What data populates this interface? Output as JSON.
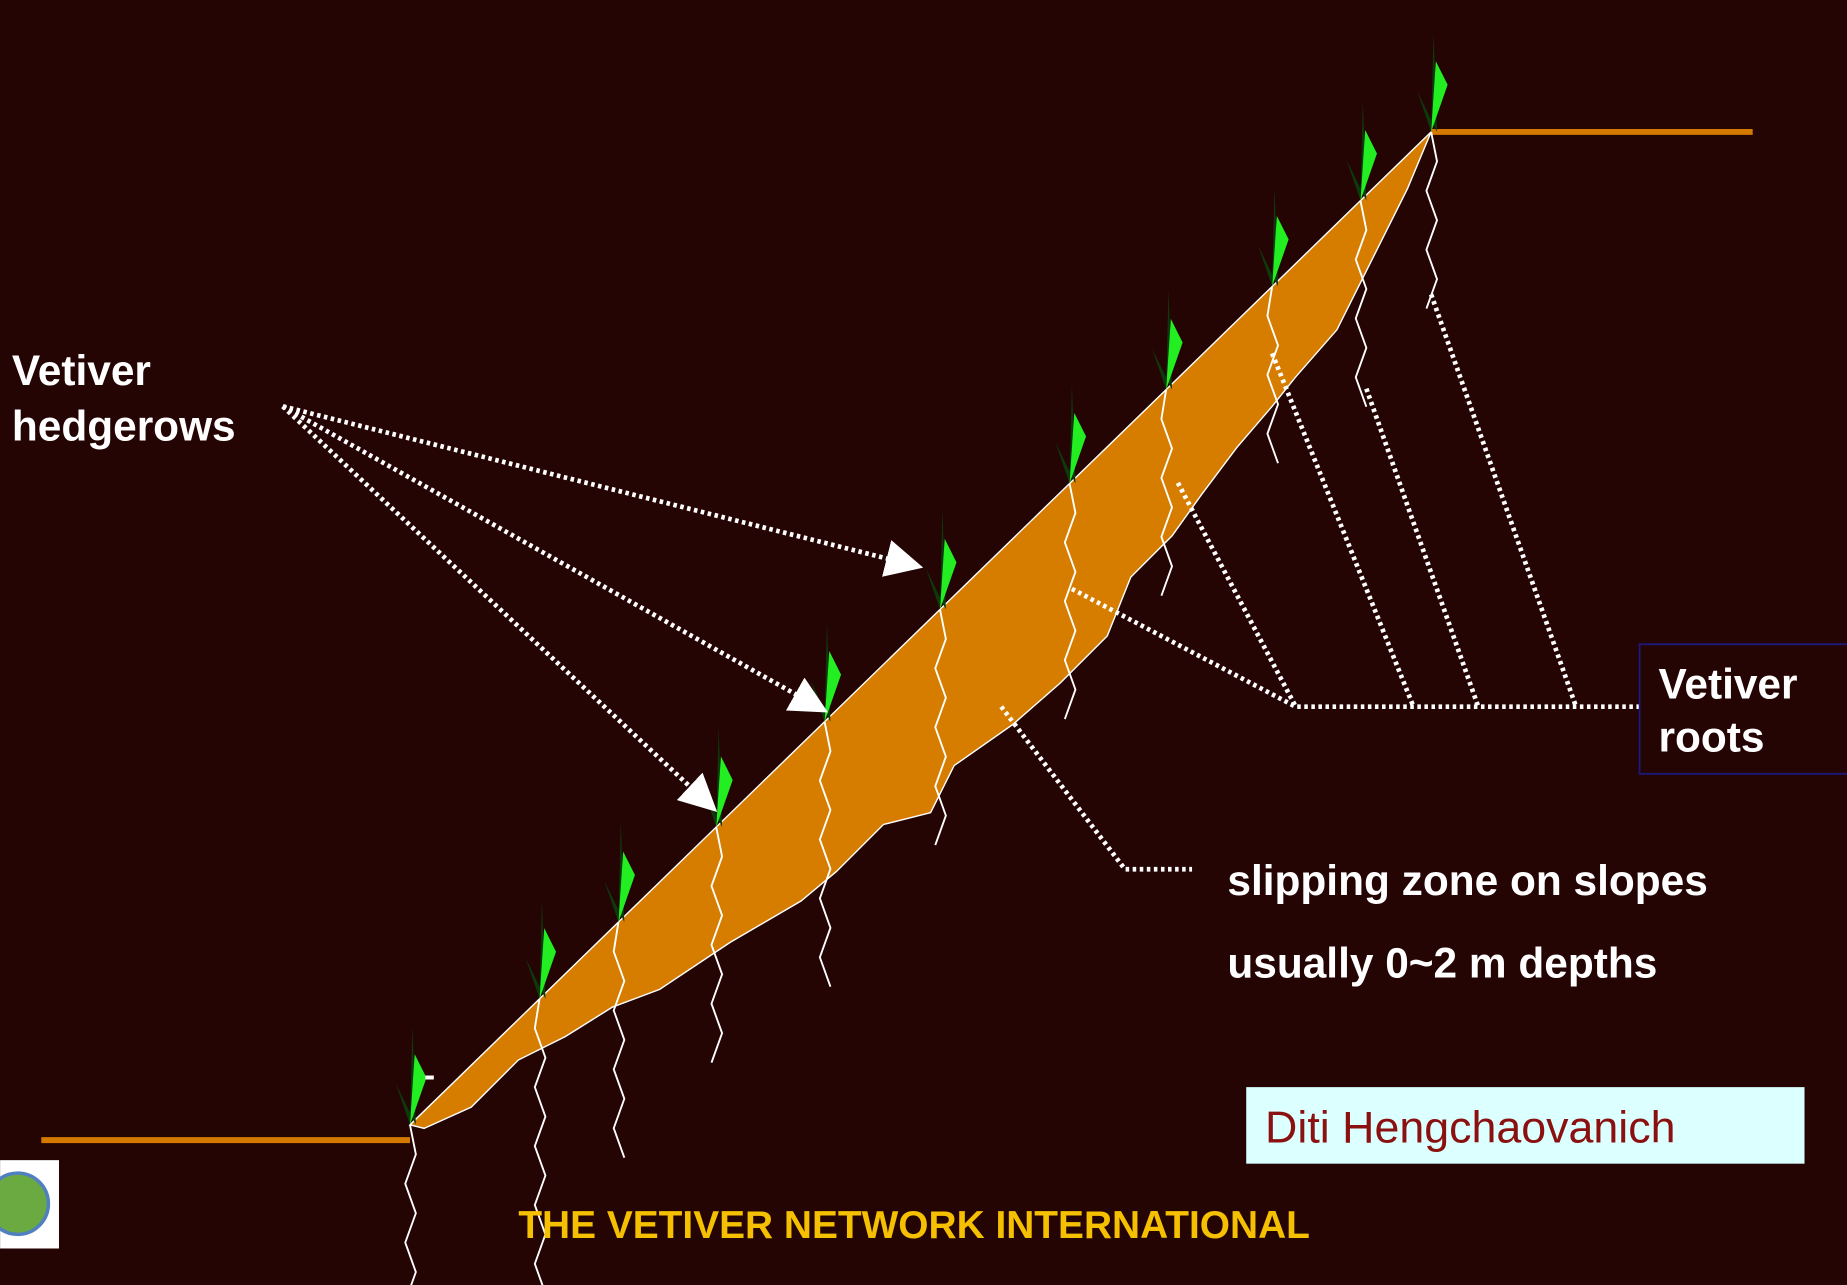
{
  "labels": {
    "hedgerows": [
      "Vetiver",
      "hedgerows"
    ],
    "roots": [
      "Vetiver",
      "roots"
    ],
    "slipping_zone": [
      "slipping zone on slopes",
      "usually 0~2 m depths"
    ],
    "mark": "-"
  },
  "credit": "Diti Hengchaovanich",
  "footer": "THE VETIVER NETWORK INTERNATIONAL"
}
